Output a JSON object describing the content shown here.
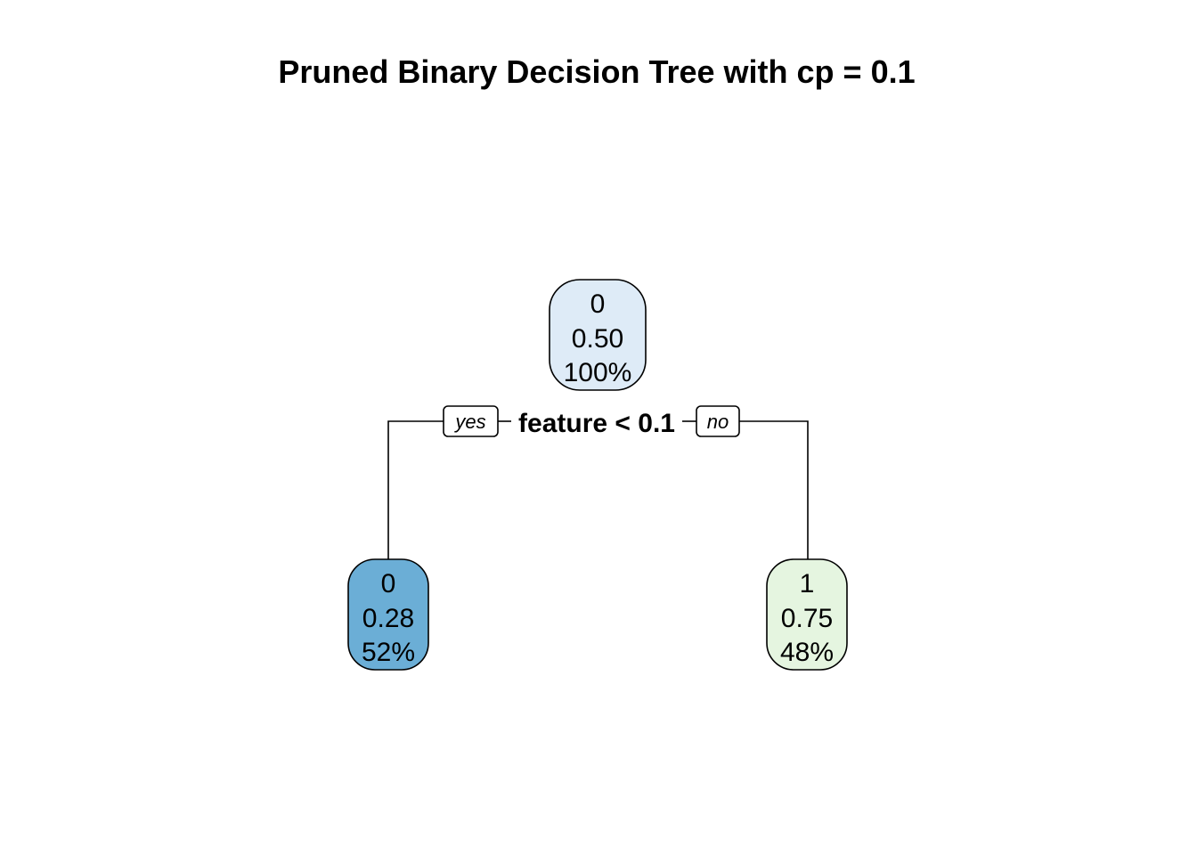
{
  "title": "Pruned Binary Decision Tree with cp = 0.1",
  "split": {
    "label": "feature < 0.1",
    "yes_label": "yes",
    "no_label": "no"
  },
  "nodes": {
    "root": {
      "class": "0",
      "prob": "0.50",
      "percent": "100%",
      "color": "#deebf7"
    },
    "left": {
      "class": "0",
      "prob": "0.28",
      "percent": "52%",
      "color": "#6baed6"
    },
    "right": {
      "class": "1",
      "prob": "0.75",
      "percent": "48%",
      "color": "#e5f5e0"
    }
  }
}
